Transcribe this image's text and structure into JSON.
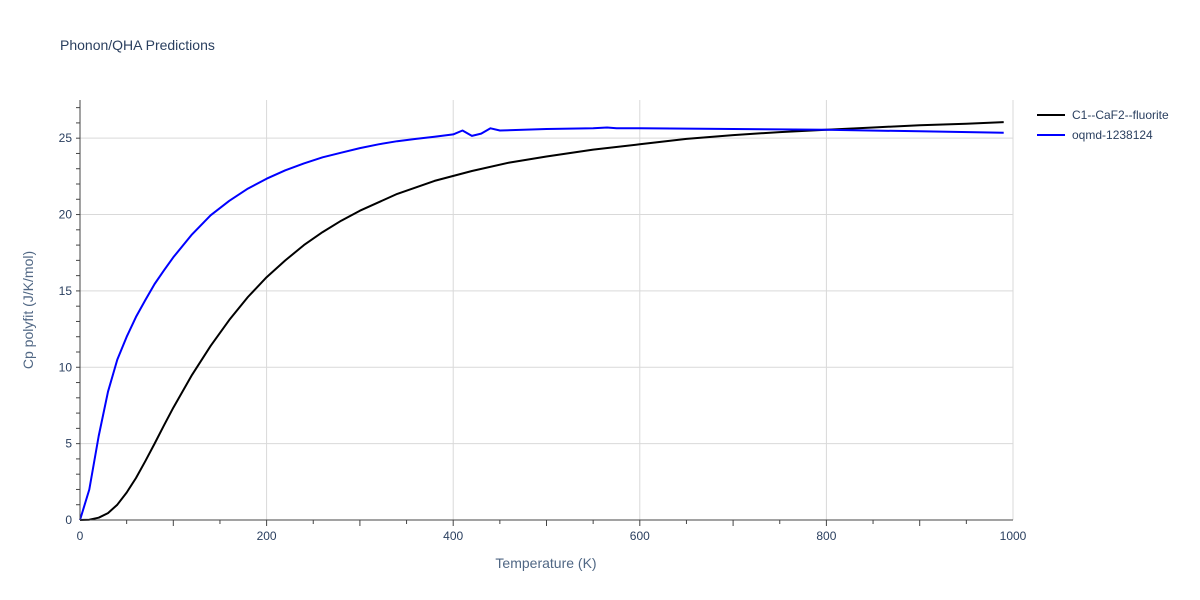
{
  "chart_data": {
    "type": "line",
    "title": "Phonon/QHA Predictions",
    "xlabel": "Temperature (K)",
    "ylabel": "Cp polyfit (J/K/mol)",
    "xlim": [
      0,
      1000
    ],
    "ylim": [
      0,
      27.5
    ],
    "x_ticks": [
      0,
      200,
      400,
      600,
      800,
      1000
    ],
    "y_ticks": [
      0,
      5,
      10,
      15,
      20,
      25
    ],
    "grid": true,
    "legend_position": "top-right",
    "series": [
      {
        "name": "C1--CaF2--fluorite",
        "color": "#000000",
        "x": [
          0,
          10,
          20,
          30,
          40,
          50,
          60,
          70,
          80,
          90,
          100,
          120,
          140,
          160,
          180,
          200,
          220,
          240,
          260,
          280,
          300,
          340,
          380,
          420,
          460,
          500,
          550,
          600,
          650,
          700,
          750,
          800,
          850,
          900,
          950,
          990
        ],
        "y": [
          0,
          0.02,
          0.15,
          0.45,
          1.0,
          1.8,
          2.75,
          3.85,
          5.0,
          6.2,
          7.35,
          9.5,
          11.4,
          13.1,
          14.6,
          15.9,
          17.0,
          18.0,
          18.85,
          19.6,
          20.25,
          21.35,
          22.2,
          22.85,
          23.4,
          23.8,
          24.25,
          24.6,
          24.95,
          25.2,
          25.4,
          25.55,
          25.7,
          25.85,
          25.95,
          26.05
        ]
      },
      {
        "name": "oqmd-1238124",
        "color": "#0000ff",
        "x": [
          0,
          10,
          20,
          30,
          40,
          50,
          60,
          70,
          80,
          90,
          100,
          120,
          140,
          160,
          180,
          200,
          220,
          240,
          260,
          280,
          300,
          320,
          340,
          360,
          380,
          400,
          410,
          420,
          430,
          440,
          450,
          500,
          550,
          565,
          575,
          600,
          700,
          800,
          900,
          990
        ],
        "y": [
          0,
          2.0,
          5.5,
          8.4,
          10.5,
          12.0,
          13.3,
          14.4,
          15.45,
          16.35,
          17.2,
          18.7,
          19.95,
          20.9,
          21.7,
          22.35,
          22.9,
          23.35,
          23.75,
          24.05,
          24.35,
          24.6,
          24.8,
          24.95,
          25.1,
          25.25,
          25.5,
          25.15,
          25.3,
          25.65,
          25.5,
          25.6,
          25.65,
          25.7,
          25.65,
          25.65,
          25.6,
          25.55,
          25.45,
          25.35
        ]
      }
    ]
  }
}
